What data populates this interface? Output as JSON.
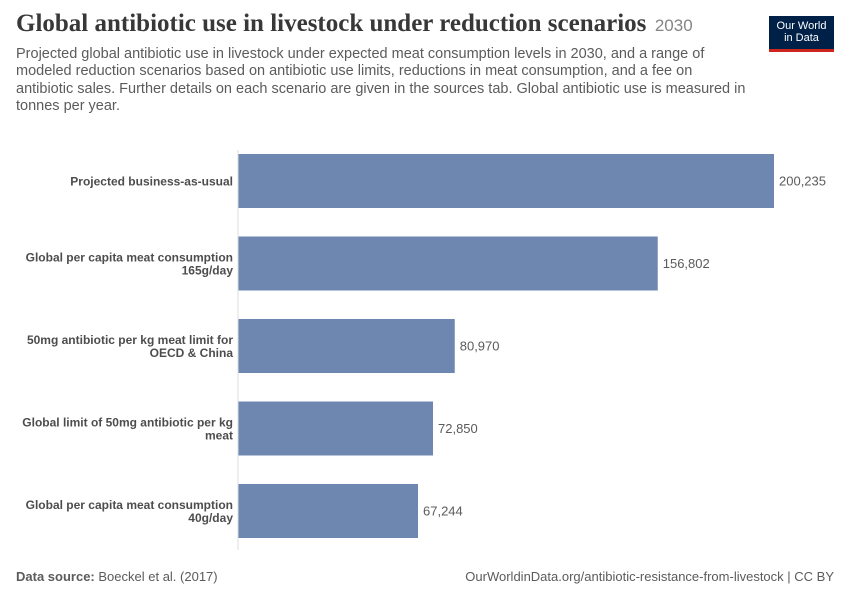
{
  "header": {
    "title": "Global antibiotic use in livestock under reduction scenarios",
    "year": "2030",
    "subtitle": "Projected global antibiotic use in livestock under expected meat consumption levels in 2030, and a range of modeled reduction scenarios based on antibiotic use limits, reductions in meat consumption, and a fee on antibiotic sales. Further details on each scenario are given in the sources tab. Global antibiotic use is measured in tonnes per year."
  },
  "logo": {
    "line1": "Our World",
    "line2": "in Data"
  },
  "chart_data": {
    "type": "bar",
    "orientation": "horizontal",
    "categories": [
      [
        "Projected business-as-usual"
      ],
      [
        "Global per capita meat consumption",
        "165g/day"
      ],
      [
        "50mg antibiotic per kg meat limit for",
        "OECD & China"
      ],
      [
        "Global limit of 50mg antibiotic per kg",
        "meat"
      ],
      [
        "Global per capita meat consumption",
        "40g/day"
      ]
    ],
    "values": [
      200235,
      156802,
      80970,
      72850,
      67244
    ],
    "value_labels": [
      "200,235",
      "156,802",
      "80,970",
      "72,850",
      "67,244"
    ],
    "xlim": [
      0,
      200235
    ],
    "bar_color": "#6d87b0",
    "grid": false
  },
  "footer": {
    "source_label": "Data source:",
    "source_value": "Boeckel et al. (2017)",
    "url_license": "OurWorldinData.org/antibiotic-resistance-from-livestock | CC BY"
  }
}
